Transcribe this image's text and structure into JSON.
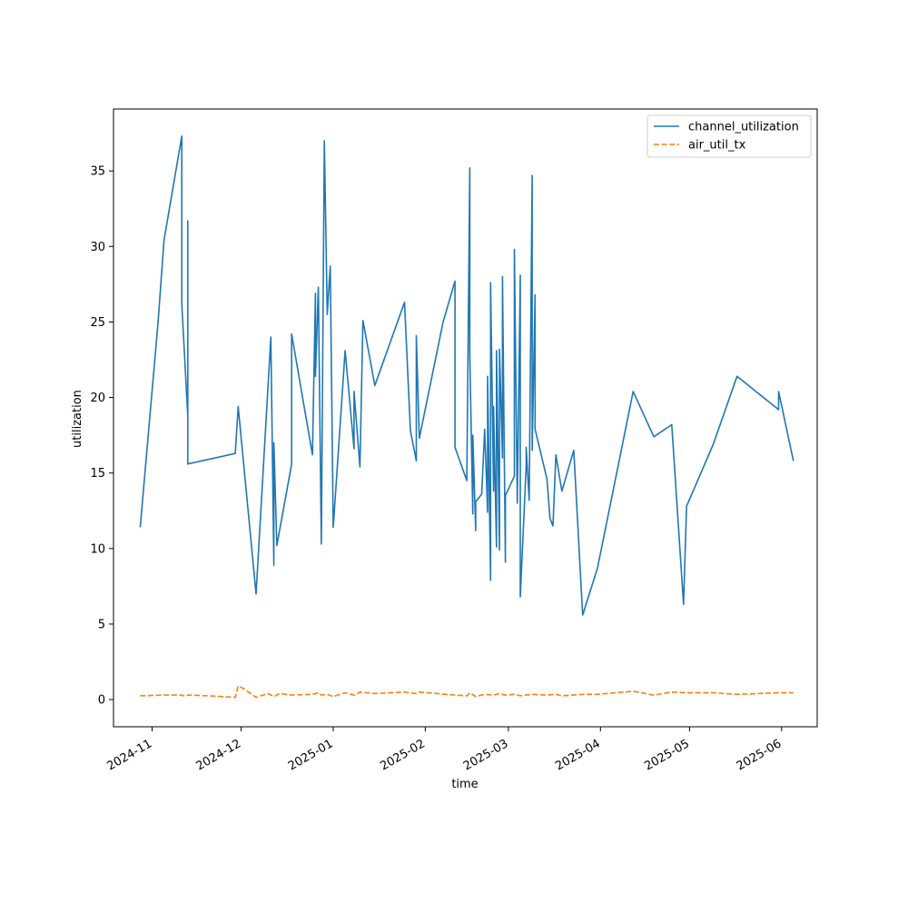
{
  "chart_data": {
    "type": "line",
    "title": "",
    "xlabel": "time",
    "ylabel": "utilization",
    "x_axis_type": "date",
    "xlim": [
      "2024-10-19",
      "2025-06-13"
    ],
    "ylim": [
      -1.8,
      39.1
    ],
    "x_ticks": [
      "2024-11-01",
      "2024-12-01",
      "2025-01-01",
      "2025-02-01",
      "2025-03-01",
      "2025-04-01",
      "2025-05-01",
      "2025-06-01"
    ],
    "x_tick_labels": [
      "2024-11",
      "2024-12",
      "2025-01",
      "2025-02",
      "2025-03",
      "2025-04",
      "2025-05",
      "2025-06"
    ],
    "y_ticks": [
      0,
      5,
      10,
      15,
      20,
      25,
      30,
      35
    ],
    "y_tick_labels": [
      "0",
      "5",
      "10",
      "15",
      "20",
      "25",
      "30",
      "35"
    ],
    "grid": false,
    "legend_position": "top-right",
    "series": [
      {
        "name": "channel_utilization",
        "color": "#1f77b4",
        "line_style": "solid",
        "points": [
          [
            "2024-10-28",
            11.4
          ],
          [
            "2024-11-03",
            25.0
          ],
          [
            "2024-11-05",
            30.4
          ],
          [
            "2024-11-11",
            37.3
          ],
          [
            "2024-11-11",
            26.2
          ],
          [
            "2024-11-13",
            18.8
          ],
          [
            "2024-11-13",
            31.7
          ],
          [
            "2024-11-13",
            15.6
          ],
          [
            "2024-11-29",
            16.3
          ],
          [
            "2024-11-30",
            19.4
          ],
          [
            "2024-12-06",
            7.0
          ],
          [
            "2024-12-11",
            24.0
          ],
          [
            "2024-12-12",
            8.9
          ],
          [
            "2024-12-12",
            17.0
          ],
          [
            "2024-12-13",
            10.2
          ],
          [
            "2024-12-18",
            15.6
          ],
          [
            "2024-12-18",
            24.2
          ],
          [
            "2024-12-25",
            16.2
          ],
          [
            "2024-12-26",
            26.9
          ],
          [
            "2024-12-26",
            21.4
          ],
          [
            "2024-12-27",
            27.3
          ],
          [
            "2024-12-28",
            10.3
          ],
          [
            "2024-12-29",
            37.0
          ],
          [
            "2024-12-30",
            25.5
          ],
          [
            "2024-12-31",
            28.7
          ],
          [
            "2025-01-01",
            11.4
          ],
          [
            "2025-01-05",
            23.1
          ],
          [
            "2025-01-08",
            16.6
          ],
          [
            "2025-01-08",
            20.4
          ],
          [
            "2025-01-10",
            15.4
          ],
          [
            "2025-01-11",
            25.1
          ],
          [
            "2025-01-15",
            20.8
          ],
          [
            "2025-01-25",
            26.3
          ],
          [
            "2025-01-27",
            17.8
          ],
          [
            "2025-01-29",
            15.8
          ],
          [
            "2025-01-29",
            24.1
          ],
          [
            "2025-01-30",
            17.3
          ],
          [
            "2025-02-07",
            25.0
          ],
          [
            "2025-02-11",
            27.7
          ],
          [
            "2025-02-11",
            16.7
          ],
          [
            "2025-02-15",
            14.5
          ],
          [
            "2025-02-16",
            35.2
          ],
          [
            "2025-02-16",
            22.8
          ],
          [
            "2025-02-17",
            12.3
          ],
          [
            "2025-02-17",
            17.5
          ],
          [
            "2025-02-18",
            11.2
          ],
          [
            "2025-02-18",
            13.1
          ],
          [
            "2025-02-20",
            13.6
          ],
          [
            "2025-02-21",
            17.9
          ],
          [
            "2025-02-22",
            12.4
          ],
          [
            "2025-02-22",
            21.4
          ],
          [
            "2025-02-23",
            7.9
          ],
          [
            "2025-02-23",
            27.6
          ],
          [
            "2025-02-24",
            13.8
          ],
          [
            "2025-02-24",
            19.4
          ],
          [
            "2025-02-25",
            10.1
          ],
          [
            "2025-02-25",
            23.1
          ],
          [
            "2025-02-26",
            9.9
          ],
          [
            "2025-02-26",
            23.2
          ],
          [
            "2025-02-27",
            16.0
          ],
          [
            "2025-02-27",
            28.0
          ],
          [
            "2025-02-28",
            9.1
          ],
          [
            "2025-02-28",
            13.5
          ],
          [
            "2025-03-03",
            14.8
          ],
          [
            "2025-03-03",
            29.8
          ],
          [
            "2025-03-04",
            13.0
          ],
          [
            "2025-03-05",
            28.1
          ],
          [
            "2025-03-05",
            6.8
          ],
          [
            "2025-03-07",
            15.5
          ],
          [
            "2025-03-07",
            16.7
          ],
          [
            "2025-03-08",
            13.2
          ],
          [
            "2025-03-09",
            34.7
          ],
          [
            "2025-03-09",
            16.5
          ],
          [
            "2025-03-10",
            26.8
          ],
          [
            "2025-03-10",
            17.9
          ],
          [
            "2025-03-14",
            14.6
          ],
          [
            "2025-03-15",
            12.0
          ],
          [
            "2025-03-16",
            11.5
          ],
          [
            "2025-03-17",
            16.2
          ],
          [
            "2025-03-19",
            13.8
          ],
          [
            "2025-03-23",
            16.5
          ],
          [
            "2025-03-26",
            5.6
          ],
          [
            "2025-03-31",
            8.7
          ],
          [
            "2025-04-12",
            20.4
          ],
          [
            "2025-04-19",
            17.4
          ],
          [
            "2025-04-25",
            18.2
          ],
          [
            "2025-04-29",
            6.3
          ],
          [
            "2025-04-30",
            12.8
          ],
          [
            "2025-05-09",
            16.9
          ],
          [
            "2025-05-17",
            21.4
          ],
          [
            "2025-05-31",
            19.2
          ],
          [
            "2025-05-31",
            20.4
          ],
          [
            "2025-06-05",
            15.8
          ]
        ]
      },
      {
        "name": "air_util_tx",
        "color": "#ff7f0e",
        "line_style": "dashed",
        "points": [
          [
            "2024-10-28",
            0.25
          ],
          [
            "2024-11-05",
            0.3
          ],
          [
            "2024-11-11",
            0.3
          ],
          [
            "2024-11-12",
            0.22
          ],
          [
            "2024-11-13",
            0.3
          ],
          [
            "2024-11-20",
            0.25
          ],
          [
            "2024-11-29",
            0.15
          ],
          [
            "2024-11-30",
            0.9
          ],
          [
            "2024-12-02",
            0.7
          ],
          [
            "2024-12-06",
            0.15
          ],
          [
            "2024-12-10",
            0.4
          ],
          [
            "2024-12-12",
            0.2
          ],
          [
            "2024-12-14",
            0.4
          ],
          [
            "2024-12-18",
            0.3
          ],
          [
            "2024-12-25",
            0.35
          ],
          [
            "2024-12-27",
            0.45
          ],
          [
            "2024-12-28",
            0.3
          ],
          [
            "2024-12-30",
            0.35
          ],
          [
            "2025-01-01",
            0.2
          ],
          [
            "2025-01-05",
            0.45
          ],
          [
            "2025-01-08",
            0.3
          ],
          [
            "2025-01-10",
            0.5
          ],
          [
            "2025-01-15",
            0.4
          ],
          [
            "2025-01-25",
            0.5
          ],
          [
            "2025-01-29",
            0.4
          ],
          [
            "2025-01-30",
            0.5
          ],
          [
            "2025-02-11",
            0.3
          ],
          [
            "2025-02-15",
            0.25
          ],
          [
            "2025-02-16",
            0.45
          ],
          [
            "2025-02-18",
            0.2
          ],
          [
            "2025-02-21",
            0.35
          ],
          [
            "2025-02-24",
            0.3
          ],
          [
            "2025-02-26",
            0.4
          ],
          [
            "2025-02-28",
            0.3
          ],
          [
            "2025-03-03",
            0.35
          ],
          [
            "2025-03-05",
            0.25
          ],
          [
            "2025-03-07",
            0.3
          ],
          [
            "2025-03-09",
            0.35
          ],
          [
            "2025-03-14",
            0.3
          ],
          [
            "2025-03-17",
            0.35
          ],
          [
            "2025-03-19",
            0.25
          ],
          [
            "2025-03-23",
            0.3
          ],
          [
            "2025-03-26",
            0.35
          ],
          [
            "2025-03-31",
            0.35
          ],
          [
            "2025-04-12",
            0.55
          ],
          [
            "2025-04-19",
            0.3
          ],
          [
            "2025-04-25",
            0.5
          ],
          [
            "2025-04-30",
            0.45
          ],
          [
            "2025-05-09",
            0.45
          ],
          [
            "2025-05-17",
            0.35
          ],
          [
            "2025-05-31",
            0.45
          ],
          [
            "2025-06-05",
            0.45
          ]
        ]
      }
    ]
  }
}
